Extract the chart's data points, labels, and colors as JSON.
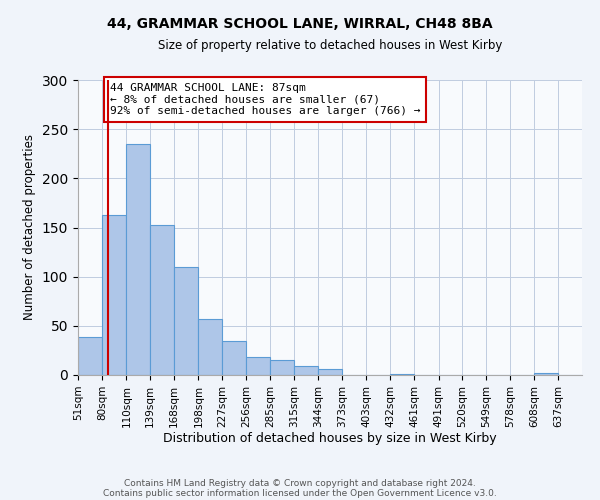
{
  "title": "44, GRAMMAR SCHOOL LANE, WIRRAL, CH48 8BA",
  "subtitle": "Size of property relative to detached houses in West Kirby",
  "xlabel": "Distribution of detached houses by size in West Kirby",
  "ylabel": "Number of detached properties",
  "bin_labels": [
    "51sqm",
    "80sqm",
    "110sqm",
    "139sqm",
    "168sqm",
    "198sqm",
    "227sqm",
    "256sqm",
    "285sqm",
    "315sqm",
    "344sqm",
    "373sqm",
    "403sqm",
    "432sqm",
    "461sqm",
    "491sqm",
    "520sqm",
    "549sqm",
    "578sqm",
    "608sqm",
    "637sqm"
  ],
  "bar_values": [
    39,
    163,
    235,
    153,
    110,
    57,
    35,
    18,
    15,
    9,
    6,
    0,
    0,
    1,
    0,
    0,
    0,
    0,
    0,
    2,
    0
  ],
  "bar_color": "#aec6e8",
  "bar_edgecolor": "#5b9bd5",
  "property_line_x": 87,
  "bin_edges_sqm": [
    51,
    80,
    110,
    139,
    168,
    198,
    227,
    256,
    285,
    315,
    344,
    373,
    403,
    432,
    461,
    491,
    520,
    549,
    578,
    608,
    637
  ],
  "red_line_color": "#cc0000",
  "annotation_text": "44 GRAMMAR SCHOOL LANE: 87sqm\n← 8% of detached houses are smaller (67)\n92% of semi-detached houses are larger (766) →",
  "annotation_box_edgecolor": "#cc0000",
  "ylim": [
    0,
    300
  ],
  "yticks": [
    0,
    50,
    100,
    150,
    200,
    250,
    300
  ],
  "footer1": "Contains HM Land Registry data © Crown copyright and database right 2024.",
  "footer2": "Contains public sector information licensed under the Open Government Licence v3.0.",
  "bg_color": "#f0f4fa",
  "plot_bg_color": "#f8fafd"
}
